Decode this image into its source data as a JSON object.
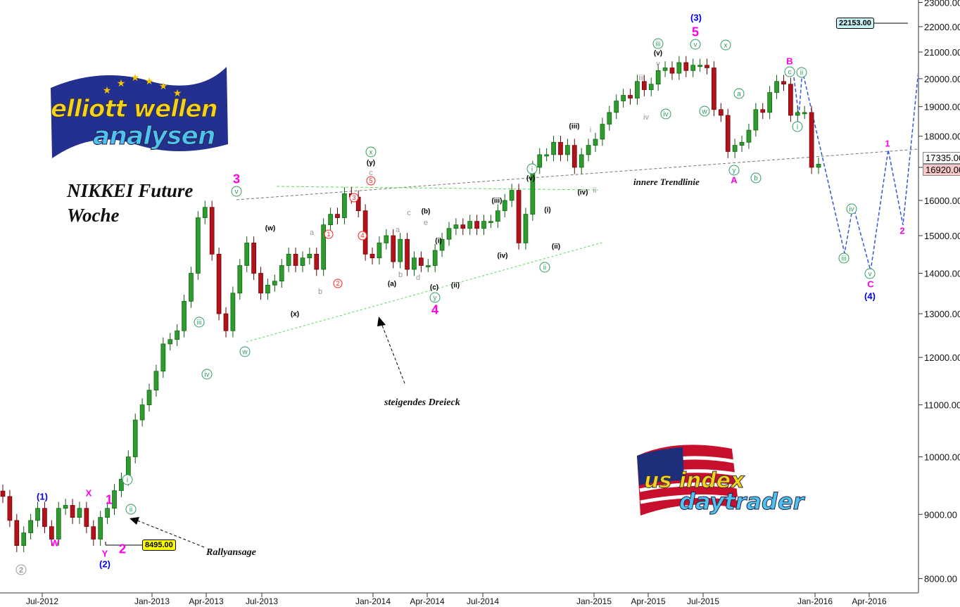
{
  "chart_data": {
    "type": "candlestick",
    "title": "NIKKEI Future",
    "subtitle": "Woche",
    "y_scale": "log",
    "ylim": [
      8000,
      23000
    ],
    "y_ticks": [
      "8000.00",
      "9000.00",
      "10000.00",
      "11000.00",
      "12000.00",
      "13000.00",
      "14000.00",
      "15000.00",
      "16000.00",
      "17000.00",
      "18000.00",
      "19000.00",
      "20000.00",
      "21000.00",
      "22000.00",
      "23000.00"
    ],
    "x_ticks": [
      "Jul-2012",
      "Jan-2013",
      "Apr-2013",
      "Jul-2013",
      "Jan-2014",
      "Apr-2014",
      "Jul-2014",
      "Jan-2015",
      "Apr-2015",
      "Jul-2015",
      "Jan-2016",
      "Apr-2016"
    ],
    "grid": false,
    "colors": {
      "up": "#2e9b2e",
      "down": "#b3121a",
      "projection": "#3355dd"
    },
    "weekly_closes": [
      9300,
      8900,
      8500,
      8700,
      8900,
      9100,
      8800,
      8600,
      9100,
      9150,
      8950,
      9100,
      8800,
      8600,
      8950,
      9100,
      9400,
      9600,
      10000,
      10700,
      11000,
      11300,
      11700,
      12300,
      12400,
      12600,
      13300,
      14000,
      15500,
      15800,
      14500,
      13000,
      12600,
      13500,
      14200,
      14800,
      14000,
      13500,
      13700,
      13800,
      14200,
      14500,
      14200,
      14400,
      14500,
      14100,
      15300,
      15600,
      15500,
      16200,
      16100,
      15700,
      14500,
      14400,
      14800,
      15000,
      14300,
      14900,
      14100,
      14400,
      14200,
      14200,
      14600,
      14900,
      15200,
      15300,
      15200,
      15400,
      15200,
      15400,
      15400,
      15700,
      16000,
      16300,
      14800,
      15600,
      17000,
      17400,
      17400,
      17800,
      17400,
      17700,
      17000,
      17400,
      17700,
      17900,
      18400,
      18800,
      19200,
      19400,
      19300,
      19900,
      19600,
      19800,
      20300,
      20400,
      20200,
      20600,
      20300,
      20500,
      20500,
      20400,
      18900,
      18700,
      17500,
      17700,
      17800,
      18200,
      18900,
      18800,
      19500,
      19900,
      19800,
      18700,
      18800,
      18800,
      17000,
      17100
    ],
    "price_tags": {
      "high_target": "22153.00",
      "low_mark": "8495.00",
      "last_1": "17335.00",
      "last_2": "16920.00"
    },
    "annotations": {
      "rally": "Rallyansage",
      "triangle": "steigendes Dreieck",
      "trendline": "innere Trendlinie"
    },
    "wave_labels": [
      "3",
      "5",
      "4",
      "1",
      "2",
      "X",
      "W",
      "Y",
      "A",
      "B",
      "C",
      "1",
      "2",
      "(3)",
      "(1)",
      "(2)",
      "(4)",
      "v",
      "w",
      "iv",
      "iii",
      "i",
      "ii",
      "x",
      "y",
      "i",
      "ii",
      "iii",
      "v",
      "x",
      "iv",
      "w",
      "y",
      "a",
      "b",
      "c",
      "ii",
      "i",
      "iii",
      "iv",
      "v",
      "(y)",
      "(w)",
      "(x)",
      "(b)",
      "(i)",
      "(a)",
      "(c)",
      "(ii)",
      "(iii)",
      "(iv)",
      "(v)",
      "(i)",
      "(ii)",
      "(iii)",
      "(iv)",
      "(v)",
      "c",
      "a",
      "b",
      "a",
      "b",
      "c",
      "d",
      "e",
      "i",
      "ii",
      "iii",
      "iv",
      "v",
      "5",
      "3",
      "4",
      "1",
      "2",
      "2"
    ]
  },
  "logos": {
    "top_left": [
      "elliott wellen",
      "analysen"
    ],
    "bottom_right": [
      "us index",
      "daytrader"
    ]
  }
}
